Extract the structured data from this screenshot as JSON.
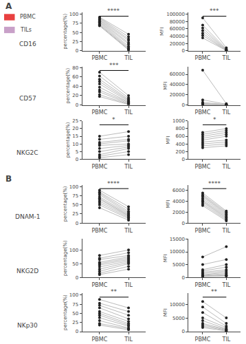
{
  "chart_data": [
    {
      "type": "line",
      "categories": [
        "PBMC",
        "TIL"
      ],
      "y_label": "percentage(%)",
      "ylim": [
        0,
        105
      ],
      "yticks": [
        0,
        25,
        50,
        75,
        100
      ],
      "annotation": "****",
      "color": "#222222",
      "grid": false,
      "series": [
        {
          "color": "#bbbbbb",
          "values": [
            92,
            45
          ]
        },
        {
          "color": "#bbbbbb",
          "values": [
            90,
            38
          ]
        },
        {
          "color": "#bbbbbb",
          "values": [
            88,
            32
          ]
        },
        {
          "color": "#bbbbbb",
          "values": [
            85,
            28
          ]
        },
        {
          "color": "#bbbbbb",
          "values": [
            83,
            22
          ]
        },
        {
          "color": "#bbbbbb",
          "values": [
            80,
            18
          ]
        },
        {
          "color": "#bbbbbb",
          "values": [
            78,
            12
          ]
        },
        {
          "color": "#bbbbbb",
          "values": [
            75,
            8
          ]
        },
        {
          "color": "#bbbbbb",
          "values": [
            72,
            5
          ]
        },
        {
          "color": "#bbbbbb",
          "values": [
            70,
            3
          ]
        },
        {
          "color": "#bbbbbb",
          "values": [
            68,
            2
          ]
        }
      ]
    },
    {
      "type": "line",
      "categories": [
        "PBMC",
        "TIL"
      ],
      "y_label": "MFI",
      "ylim": [
        0,
        105000
      ],
      "yticks": [
        0,
        20000,
        40000,
        60000,
        80000,
        100000
      ],
      "annotation": "***",
      "color": "#222222",
      "grid": false,
      "series": [
        {
          "color": "#bbbbbb",
          "values": [
            90000,
            8000
          ]
        },
        {
          "color": "#bbbbbb",
          "values": [
            70000,
            5000
          ]
        },
        {
          "color": "#bbbbbb",
          "values": [
            62000,
            3000
          ]
        },
        {
          "color": "#bbbbbb",
          "values": [
            55000,
            2000
          ]
        },
        {
          "color": "#bbbbbb",
          "values": [
            48000,
            1000
          ]
        },
        {
          "color": "#bbbbbb",
          "values": [
            42000,
            500
          ]
        },
        {
          "color": "#bbbbbb",
          "values": [
            35000,
            200
          ]
        }
      ]
    },
    {
      "type": "line",
      "categories": [
        "PBMC",
        "TIL"
      ],
      "y_label": "percentage(%)",
      "ylim": [
        0,
        82
      ],
      "yticks": [
        0,
        20,
        40,
        60,
        80
      ],
      "annotation": "***",
      "color": "#222222",
      "grid": false,
      "series": [
        {
          "color": "#bbbbbb",
          "values": [
            70,
            20
          ]
        },
        {
          "color": "#bbbbbb",
          "values": [
            62,
            15
          ]
        },
        {
          "color": "#bbbbbb",
          "values": [
            55,
            12
          ]
        },
        {
          "color": "#bbbbbb",
          "values": [
            50,
            10
          ]
        },
        {
          "color": "#bbbbbb",
          "values": [
            45,
            8
          ]
        },
        {
          "color": "#bbbbbb",
          "values": [
            38,
            6
          ]
        },
        {
          "color": "#bbbbbb",
          "values": [
            32,
            5
          ]
        },
        {
          "color": "#bbbbbb",
          "values": [
            28,
            3
          ]
        },
        {
          "color": "#bbbbbb",
          "values": [
            22,
            2
          ]
        },
        {
          "color": "#bbbbbb",
          "values": [
            18,
            1
          ]
        }
      ]
    },
    {
      "type": "line",
      "categories": [
        "PBMC",
        "TIL"
      ],
      "y_label": "MFI",
      "ylim": [
        0,
        75000
      ],
      "yticks": [
        0,
        20000,
        40000,
        60000
      ],
      "color": "#222222",
      "grid": false,
      "series": [
        {
          "color": "#bbbbbb",
          "values": [
            68000,
            2500
          ]
        },
        {
          "color": "#bbbbbb",
          "values": [
            10000,
            1500
          ]
        },
        {
          "color": "#bbbbbb",
          "values": [
            5000,
            800
          ]
        },
        {
          "color": "#bbbbbb",
          "values": [
            3000,
            400
          ]
        },
        {
          "color": "#bbbbbb",
          "values": [
            1000,
            200
          ]
        },
        {
          "color": "#bbbbbb",
          "values": [
            800,
            100
          ]
        },
        {
          "color": "#bbbbbb",
          "values": [
            600,
            50
          ]
        },
        {
          "color": "#bbbbbb",
          "values": [
            400,
            30
          ]
        },
        {
          "color": "#bbbbbb",
          "values": [
            200,
            10
          ]
        },
        {
          "color": "#bbbbbb",
          "values": [
            100,
            5
          ]
        }
      ]
    },
    {
      "type": "line",
      "categories": [
        "PBMC",
        "TIL"
      ],
      "y_label": "percentage(%)",
      "ylim": [
        0,
        25
      ],
      "yticks": [
        0,
        5,
        10,
        15,
        20,
        25
      ],
      "annotation": "*",
      "color": "#222222",
      "grid": false,
      "series": [
        {
          "color": "#bbbbbb",
          "values": [
            15,
            18
          ]
        },
        {
          "color": "#bbbbbb",
          "values": [
            13,
            15
          ]
        },
        {
          "color": "#bbbbbb",
          "values": [
            11,
            13
          ]
        },
        {
          "color": "#bbbbbb",
          "values": [
            10,
            12
          ]
        },
        {
          "color": "#bbbbbb",
          "values": [
            9,
            10
          ]
        },
        {
          "color": "#bbbbbb",
          "values": [
            7,
            9
          ]
        },
        {
          "color": "#bbbbbb",
          "values": [
            5,
            8
          ]
        },
        {
          "color": "#bbbbbb",
          "values": [
            3,
            7
          ]
        },
        {
          "color": "#bbbbbb",
          "values": [
            2,
            5
          ]
        },
        {
          "color": "#bbbbbb",
          "values": [
            1,
            3
          ]
        }
      ]
    },
    {
      "type": "line",
      "categories": [
        "PBMC",
        "TIL"
      ],
      "y_label": "MFI",
      "ylim": [
        0,
        1000
      ],
      "yticks": [
        0,
        200,
        400,
        600,
        800,
        1000
      ],
      "annotation": "*",
      "color": "#222222",
      "grid": false,
      "series": [
        {
          "color": "#bbbbbb",
          "values": [
            700,
            800
          ]
        },
        {
          "color": "#bbbbbb",
          "values": [
            650,
            750
          ]
        },
        {
          "color": "#bbbbbb",
          "values": [
            600,
            700
          ]
        },
        {
          "color": "#bbbbbb",
          "values": [
            550,
            650
          ]
        },
        {
          "color": "#bbbbbb",
          "values": [
            500,
            600
          ]
        },
        {
          "color": "#bbbbbb",
          "values": [
            450,
            500
          ]
        },
        {
          "color": "#bbbbbb",
          "values": [
            400,
            450
          ]
        },
        {
          "color": "#bbbbbb",
          "values": [
            350,
            400
          ]
        },
        {
          "color": "#bbbbbb",
          "values": [
            300,
            350
          ]
        }
      ]
    },
    {
      "type": "line",
      "categories": [
        "PBMC",
        "TIL"
      ],
      "y_label": "percentage(%)",
      "ylim": [
        0,
        105
      ],
      "yticks": [
        0,
        25,
        50,
        75,
        100
      ],
      "annotation": "****",
      "color": "#222222",
      "grid": false,
      "series": [
        {
          "color": "#bbbbbb",
          "values": [
            90,
            45
          ]
        },
        {
          "color": "#bbbbbb",
          "values": [
            85,
            38
          ]
        },
        {
          "color": "#bbbbbb",
          "values": [
            82,
            32
          ]
        },
        {
          "color": "#bbbbbb",
          "values": [
            78,
            28
          ]
        },
        {
          "color": "#bbbbbb",
          "values": [
            72,
            25
          ]
        },
        {
          "color": "#bbbbbb",
          "values": [
            68,
            22
          ]
        },
        {
          "color": "#bbbbbb",
          "values": [
            65,
            20
          ]
        },
        {
          "color": "#bbbbbb",
          "values": [
            60,
            18
          ]
        },
        {
          "color": "#bbbbbb",
          "values": [
            55,
            15
          ]
        },
        {
          "color": "#bbbbbb",
          "values": [
            50,
            12
          ]
        },
        {
          "color": "#bbbbbb",
          "values": [
            42,
            8
          ]
        }
      ]
    },
    {
      "type": "line",
      "categories": [
        "PBMC",
        "TIL"
      ],
      "y_label": "MFI",
      "ylim": [
        0,
        7000
      ],
      "yticks": [
        0,
        2000,
        4000,
        6000
      ],
      "annotation": "****",
      "color": "#222222",
      "grid": false,
      "series": [
        {
          "color": "#bbbbbb",
          "values": [
            5500,
            2200
          ]
        },
        {
          "color": "#bbbbbb",
          "values": [
            5200,
            2000
          ]
        },
        {
          "color": "#bbbbbb",
          "values": [
            5000,
            1800
          ]
        },
        {
          "color": "#bbbbbb",
          "values": [
            4800,
            1600
          ]
        },
        {
          "color": "#bbbbbb",
          "values": [
            4500,
            1400
          ]
        },
        {
          "color": "#bbbbbb",
          "values": [
            4200,
            1200
          ]
        },
        {
          "color": "#bbbbbb",
          "values": [
            4000,
            1000
          ]
        },
        {
          "color": "#bbbbbb",
          "values": [
            3800,
            800
          ]
        },
        {
          "color": "#bbbbbb",
          "values": [
            3500,
            600
          ]
        },
        {
          "color": "#bbbbbb",
          "values": [
            3200,
            400
          ]
        }
      ]
    },
    {
      "type": "line",
      "categories": [
        "PBMC",
        "TIL"
      ],
      "y_label": "percentage(%)",
      "ylim": [
        0,
        140
      ],
      "yticks": [
        0,
        50,
        100
      ],
      "color": "#222222",
      "grid": false,
      "series": [
        {
          "color": "#bbbbbb",
          "values": [
            80,
            100
          ]
        },
        {
          "color": "#bbbbbb",
          "values": [
            70,
            90
          ]
        },
        {
          "color": "#bbbbbb",
          "values": [
            65,
            80
          ]
        },
        {
          "color": "#bbbbbb",
          "values": [
            55,
            75
          ]
        },
        {
          "color": "#bbbbbb",
          "values": [
            50,
            70
          ]
        },
        {
          "color": "#bbbbbb",
          "values": [
            45,
            65
          ]
        },
        {
          "color": "#bbbbbb",
          "values": [
            38,
            60
          ]
        },
        {
          "color": "#bbbbbb",
          "values": [
            30,
            55
          ]
        },
        {
          "color": "#bbbbbb",
          "values": [
            22,
            50
          ]
        },
        {
          "color": "#bbbbbb",
          "values": [
            15,
            40
          ]
        },
        {
          "color": "#bbbbbb",
          "values": [
            10,
            30
          ]
        }
      ]
    },
    {
      "type": "line",
      "categories": [
        "PBMC",
        "TIL"
      ],
      "y_label": "MFI",
      "ylim": [
        0,
        15000
      ],
      "yticks": [
        0,
        5000,
        10000,
        15000
      ],
      "color": "#222222",
      "grid": false,
      "series": [
        {
          "color": "#bbbbbb",
          "values": [
            8000,
            12000
          ]
        },
        {
          "color": "#bbbbbb",
          "values": [
            5000,
            7000
          ]
        },
        {
          "color": "#bbbbbb",
          "values": [
            3000,
            5000
          ]
        },
        {
          "color": "#bbbbbb",
          "values": [
            2500,
            4000
          ]
        },
        {
          "color": "#bbbbbb",
          "values": [
            2000,
            3000
          ]
        },
        {
          "color": "#bbbbbb",
          "values": [
            1500,
            2500
          ]
        },
        {
          "color": "#bbbbbb",
          "values": [
            1000,
            2000
          ]
        },
        {
          "color": "#bbbbbb",
          "values": [
            800,
            1500
          ]
        },
        {
          "color": "#bbbbbb",
          "values": [
            600,
            1000
          ]
        },
        {
          "color": "#bbbbbb",
          "values": [
            400,
            800
          ]
        },
        {
          "color": "#bbbbbb",
          "values": [
            300,
            500
          ]
        }
      ]
    },
    {
      "type": "line",
      "categories": [
        "PBMC",
        "TIL"
      ],
      "y_label": "percentage(%)",
      "ylim": [
        0,
        105
      ],
      "yticks": [
        0,
        25,
        50,
        75,
        100
      ],
      "annotation": "**",
      "color": "#222222",
      "grid": false,
      "series": [
        {
          "color": "#bbbbbb",
          "values": [
            88,
            65
          ]
        },
        {
          "color": "#bbbbbb",
          "values": [
            78,
            55
          ]
        },
        {
          "color": "#bbbbbb",
          "values": [
            72,
            45
          ]
        },
        {
          "color": "#bbbbbb",
          "values": [
            65,
            35
          ]
        },
        {
          "color": "#bbbbbb",
          "values": [
            55,
            28
          ]
        },
        {
          "color": "#bbbbbb",
          "values": [
            50,
            22
          ]
        },
        {
          "color": "#bbbbbb",
          "values": [
            45,
            18
          ]
        },
        {
          "color": "#bbbbbb",
          "values": [
            38,
            15
          ]
        },
        {
          "color": "#bbbbbb",
          "values": [
            30,
            10
          ]
        },
        {
          "color": "#bbbbbb",
          "values": [
            22,
            8
          ]
        },
        {
          "color": "#bbbbbb",
          "values": [
            18,
            5
          ]
        }
      ]
    },
    {
      "type": "line",
      "categories": [
        "PBMC",
        "TIL"
      ],
      "y_label": "MFI",
      "ylim": [
        0,
        14000
      ],
      "yticks": [
        0,
        5000,
        10000
      ],
      "annotation": "**",
      "color": "#222222",
      "grid": false,
      "series": [
        {
          "color": "#bbbbbb",
          "values": [
            11000,
            5000
          ]
        },
        {
          "color": "#bbbbbb",
          "values": [
            9000,
            3000
          ]
        },
        {
          "color": "#bbbbbb",
          "values": [
            7000,
            2000
          ]
        },
        {
          "color": "#bbbbbb",
          "values": [
            5000,
            1500
          ]
        },
        {
          "color": "#bbbbbb",
          "values": [
            4000,
            1000
          ]
        },
        {
          "color": "#bbbbbb",
          "values": [
            3000,
            800
          ]
        },
        {
          "color": "#bbbbbb",
          "values": [
            2500,
            600
          ]
        },
        {
          "color": "#bbbbbb",
          "values": [
            2000,
            400
          ]
        },
        {
          "color": "#bbbbbb",
          "values": [
            1500,
            200
          ]
        }
      ]
    }
  ],
  "panel_labels": [
    "A",
    "B"
  ],
  "row_labels": [
    "CD16",
    "CD57",
    "NKG2C",
    "DNAM-1",
    "NKG2D",
    "NKp30"
  ],
  "legend_entries": [
    {
      "name": "PBMC",
      "color": "#e84040"
    },
    {
      "name": "TILs",
      "color": "#c8a0c8"
    }
  ]
}
